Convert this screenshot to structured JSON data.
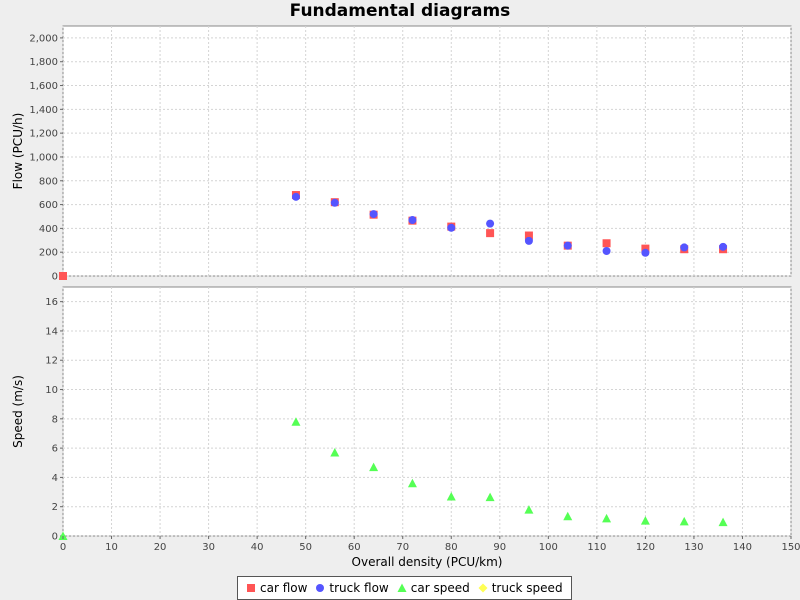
{
  "chart_data": {
    "type": "scatter",
    "title": "Fundamental diagrams",
    "xlabel": "Overall density (PCU/km)",
    "xlim": [
      0,
      150
    ],
    "x_ticks": [
      "0",
      "10",
      "20",
      "30",
      "40",
      "50",
      "60",
      "70",
      "80",
      "90",
      "100",
      "110",
      "120",
      "130",
      "140",
      "150"
    ],
    "grid": true,
    "legend_position": "bottom-center",
    "panels": [
      {
        "name": "flow",
        "ylabel": "Flow (PCU/h)",
        "ylim": [
          0,
          2100
        ],
        "y_ticks": [
          "0",
          "200",
          "400",
          "600",
          "800",
          "1,000",
          "1,200",
          "1,400",
          "1,600",
          "1,800",
          "2,000"
        ],
        "series": [
          {
            "name": "car flow",
            "marker": "square",
            "color": "#ff5555",
            "points": [
              [
                0,
                0
              ],
              [
                48,
                680
              ],
              [
                56,
                620
              ],
              [
                64,
                515
              ],
              [
                72,
                465
              ],
              [
                80,
                415
              ],
              [
                88,
                360
              ],
              [
                96,
                340
              ],
              [
                104,
                255
              ],
              [
                112,
                275
              ],
              [
                120,
                230
              ],
              [
                128,
                225
              ],
              [
                136,
                225
              ]
            ]
          },
          {
            "name": "truck flow",
            "marker": "circle",
            "color": "#5555ff",
            "points": [
              [
                48,
                665
              ],
              [
                56,
                615
              ],
              [
                64,
                520
              ],
              [
                72,
                470
              ],
              [
                80,
                405
              ],
              [
                88,
                440
              ],
              [
                96,
                295
              ],
              [
                104,
                255
              ],
              [
                112,
                210
              ],
              [
                120,
                195
              ],
              [
                128,
                240
              ],
              [
                136,
                245
              ]
            ]
          }
        ]
      },
      {
        "name": "speed",
        "ylabel": "Speed (m/s)",
        "ylim": [
          0,
          17
        ],
        "y_ticks": [
          "0",
          "2",
          "4",
          "6",
          "8",
          "10",
          "12",
          "14",
          "16"
        ],
        "series": [
          {
            "name": "car speed",
            "marker": "triangle",
            "color": "#55ff55",
            "points": [
              [
                0,
                0
              ],
              [
                48,
                7.8
              ],
              [
                56,
                5.7
              ],
              [
                64,
                4.7
              ],
              [
                72,
                3.6
              ],
              [
                80,
                2.7
              ],
              [
                88,
                2.65
              ],
              [
                96,
                1.8
              ],
              [
                104,
                1.35
              ],
              [
                112,
                1.2
              ],
              [
                120,
                1.05
              ],
              [
                128,
                1.0
              ],
              [
                136,
                0.95
              ]
            ]
          },
          {
            "name": "truck speed",
            "marker": "diamond",
            "color": "#ffff55",
            "points": []
          }
        ]
      }
    ],
    "legend": [
      {
        "label": "car flow",
        "marker": "square",
        "color": "#ff5555"
      },
      {
        "label": "truck flow",
        "marker": "circle",
        "color": "#5555ff"
      },
      {
        "label": "car speed",
        "marker": "triangle",
        "color": "#55ff55"
      },
      {
        "label": "truck speed",
        "marker": "diamond",
        "color": "#ffff55"
      }
    ]
  }
}
